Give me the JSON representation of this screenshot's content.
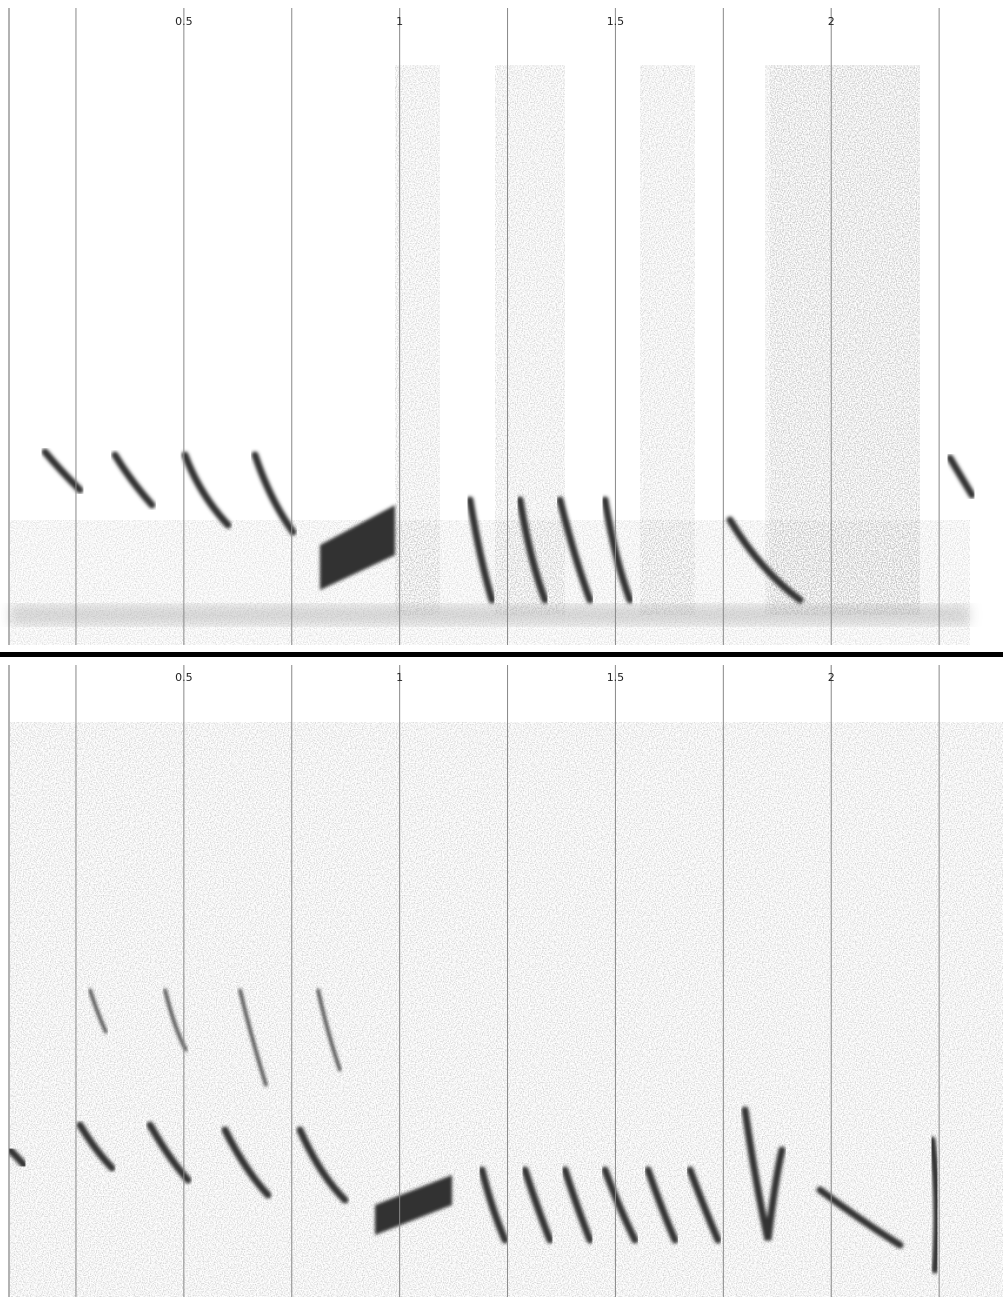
{
  "chart_data": [
    {
      "type": "spectrogram",
      "xlim": [
        0.074,
        2.398
      ],
      "xticks": [
        0.5,
        1,
        1.5,
        2
      ],
      "xgrid": [
        0.25,
        0.5,
        0.75,
        1,
        1.25,
        1.5,
        1.75,
        2,
        2.25
      ]
    },
    {
      "type": "spectrogram",
      "xlim": [
        0.074,
        2.398
      ],
      "xticks": [
        0.5,
        1,
        1.5,
        2
      ],
      "xgrid": [
        0.25,
        0.5,
        0.75,
        1,
        1.25,
        1.5,
        1.75,
        2,
        2.25
      ]
    }
  ]
}
